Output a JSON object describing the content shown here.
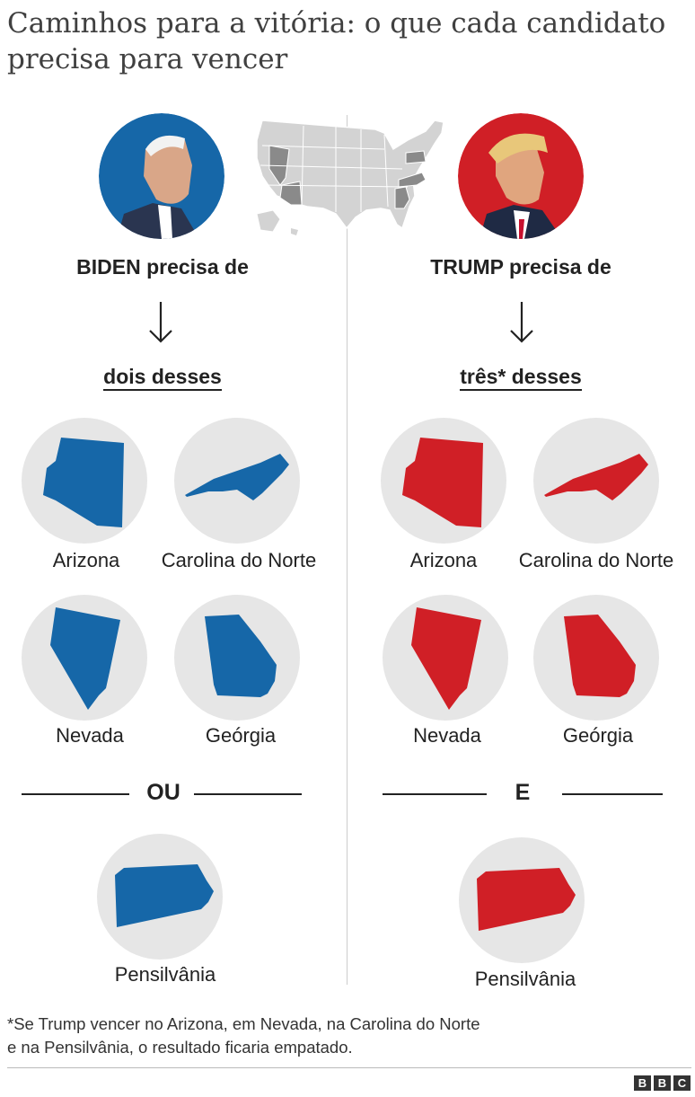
{
  "title": "Caminhos para a vitória: o que cada candidato precisa para vencer",
  "colors": {
    "biden": "#1667a8",
    "trump": "#d01f26",
    "circle_bg": "#e6e6e6",
    "map_fill": "#d3d3d3",
    "map_highlight": "#8a8a8a"
  },
  "biden": {
    "needs": "BIDEN precisa de",
    "subhead": "dois desses",
    "states": [
      "Arizona",
      "Carolina do Norte",
      "Nevada",
      "Geórgia"
    ],
    "separator": "OU",
    "extra_state": "Pensilvânia"
  },
  "trump": {
    "needs": "TRUMP precisa de",
    "subhead": "três* desses",
    "states": [
      "Arizona",
      "Carolina do Norte",
      "Nevada",
      "Geórgia"
    ],
    "separator": "E",
    "extra_state": "Pensilvânia"
  },
  "footnote_line1": "*Se Trump vencer no Arizona, em Nevada, na Carolina do Norte",
  "footnote_line2": "e na Pensilvânia, o resultado ficaria empatado.",
  "logo": [
    "B",
    "B",
    "C"
  ]
}
